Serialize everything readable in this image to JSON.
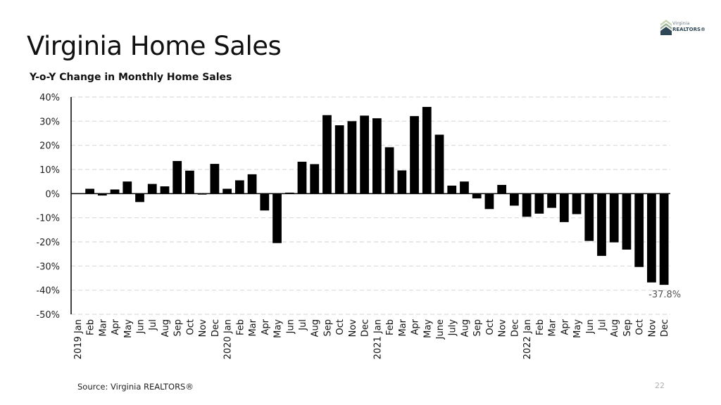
{
  "page": {
    "title": "Virginia Home Sales",
    "source": "Source: Virginia REALTORS®",
    "page_number": "22",
    "logo": {
      "line1": "Virginia",
      "line2": "REALTORS®"
    }
  },
  "colors": {
    "bar": "#000000",
    "grid": "#d9d9d9",
    "logo_roof_light": "#b9c9a3",
    "logo_roof_dark": "#2f4656"
  },
  "chart_data": {
    "type": "bar",
    "title": "Y-o-Y Change in Monthly Home Sales",
    "xlabel": "",
    "ylabel": "",
    "ylim": [
      -50,
      40
    ],
    "yticks": [
      40,
      30,
      20,
      10,
      0,
      -10,
      -20,
      -30,
      -40,
      -50
    ],
    "ytick_labels": [
      "40%",
      "30%",
      "20%",
      "10%",
      "0%",
      "-10%",
      "-20%",
      "-30%",
      "-40%",
      "-50%"
    ],
    "grid": true,
    "categories": [
      "2019 Jan",
      "Feb",
      "Mar",
      "Apr",
      "May",
      "Jun",
      "Jul",
      "Aug",
      "Sep",
      "Oct",
      "Nov",
      "Dec",
      "2020 Jan",
      "Feb",
      "Mar",
      "Apr",
      "May",
      "Jun",
      "Jul",
      "Aug",
      "Sep",
      "Oct",
      "Nov",
      "Dec",
      "2021 Jan",
      "Feb",
      "Mar",
      "Apr",
      "May",
      "June",
      "July",
      "Aug",
      "Sep",
      "Oct",
      "Nov",
      "Dec",
      "2022 Jan",
      "Feb",
      "Mar",
      "Apr",
      "May",
      "Jun",
      "Jul",
      "Aug",
      "Sep",
      "Oct",
      "Nov",
      "Dec"
    ],
    "values": [
      0.0,
      2.0,
      -0.8,
      1.7,
      5.0,
      -3.5,
      4.0,
      3.0,
      13.5,
      9.5,
      -0.4,
      12.3,
      2.0,
      5.5,
      8.0,
      -7.0,
      -20.5,
      0.4,
      13.2,
      12.2,
      32.5,
      28.3,
      30.0,
      32.3,
      31.2,
      19.2,
      9.6,
      32.1,
      35.9,
      24.4,
      3.3,
      5.0,
      -2.0,
      -6.4,
      3.6,
      -5.0,
      -9.6,
      -8.3,
      -5.9,
      -11.8,
      -8.5,
      -19.6,
      -25.8,
      -20.2,
      -23.2,
      -30.4,
      -36.8,
      -37.8
    ],
    "annotations": [
      {
        "category_index": 47,
        "text": "-37.8%"
      }
    ]
  }
}
